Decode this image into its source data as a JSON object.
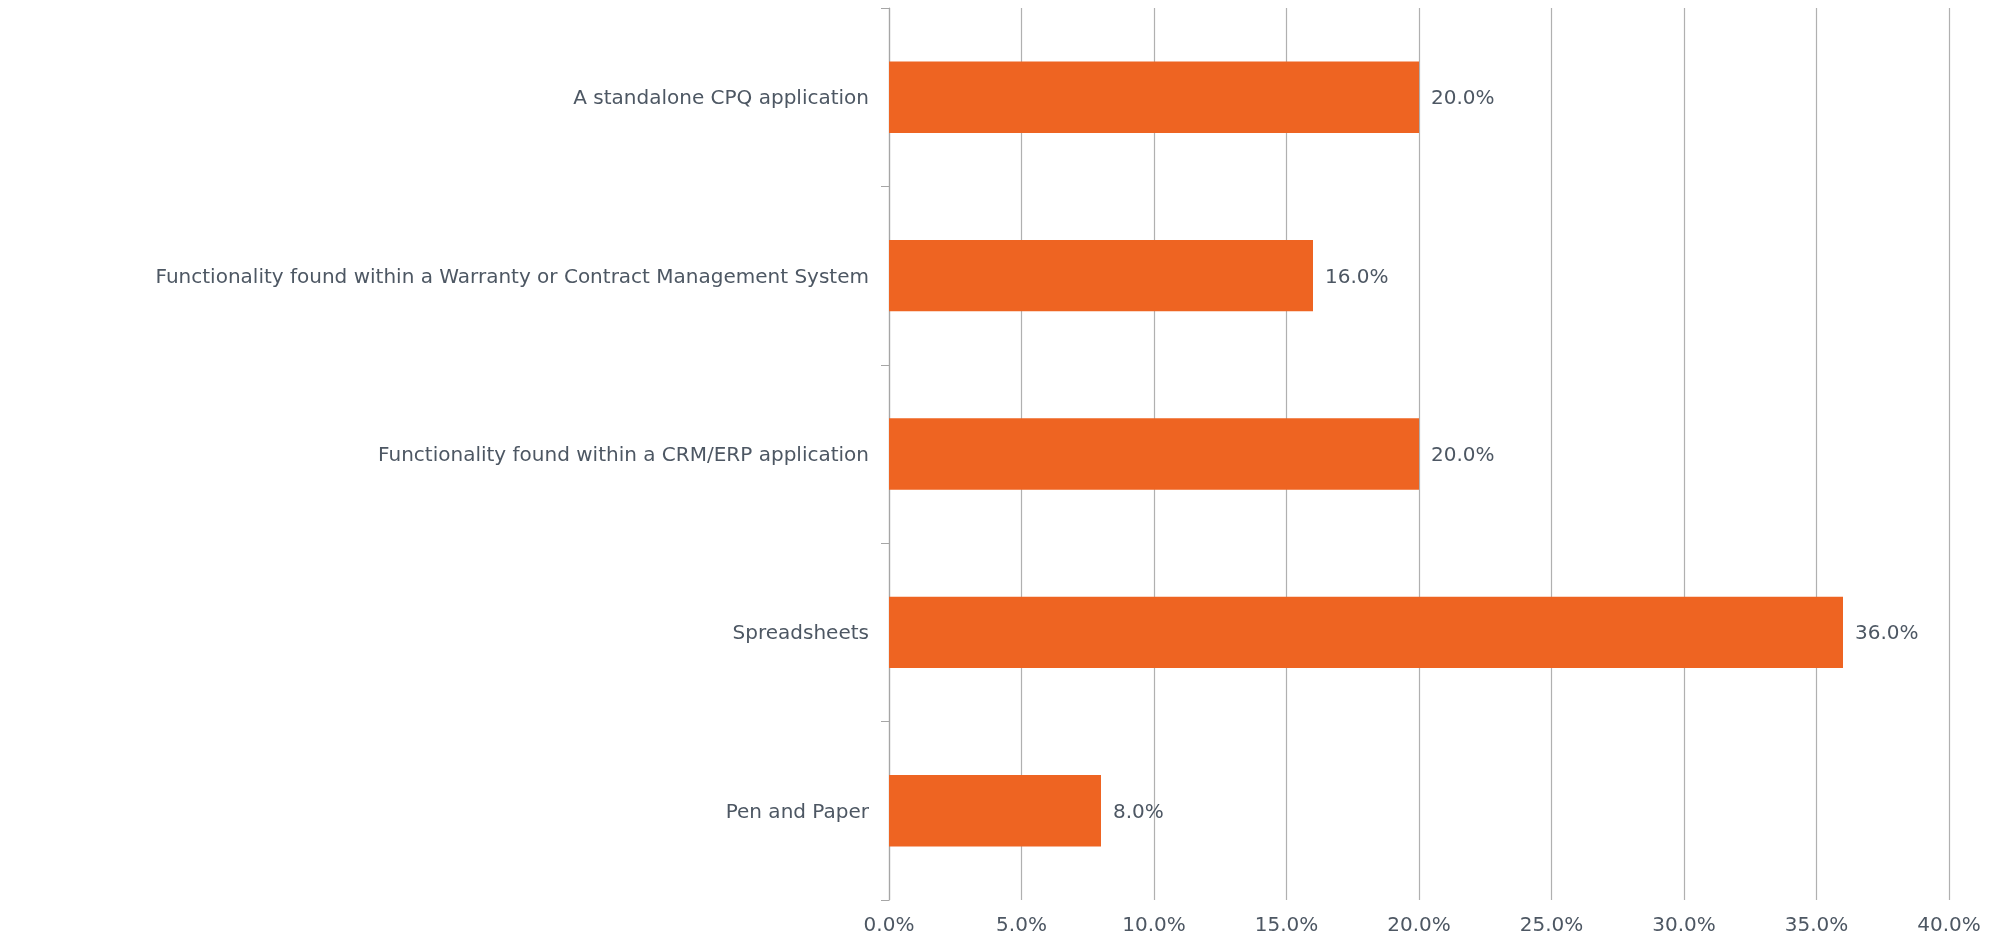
{
  "chart_data": {
    "type": "bar",
    "orientation": "horizontal",
    "categories": [
      "A standalone CPQ application",
      "Functionality found within a Warranty or Contract Management System",
      "Functionality found within a CRM/ERP application",
      "Spreadsheets",
      "Pen and Paper"
    ],
    "values": [
      20,
      16,
      20,
      36,
      8
    ],
    "value_labels": [
      "20.0%",
      "16.0%",
      "20.0%",
      "36.0%",
      "8.0%"
    ],
    "color": "#ee6422",
    "xlim": [
      0,
      40
    ],
    "xticks": [
      {
        "value": 0,
        "label": "0.0%"
      },
      {
        "value": 5,
        "label": "5.0%"
      },
      {
        "value": 10,
        "label": "10.0%"
      },
      {
        "value": 15,
        "label": "15.0%"
      },
      {
        "value": 20,
        "label": "20.0%"
      },
      {
        "value": 25,
        "label": "25.0%"
      },
      {
        "value": 30,
        "label": "30.0%"
      },
      {
        "value": 35,
        "label": "35.0%"
      },
      {
        "value": 40,
        "label": "40.0%"
      }
    ],
    "grid": "x"
  }
}
